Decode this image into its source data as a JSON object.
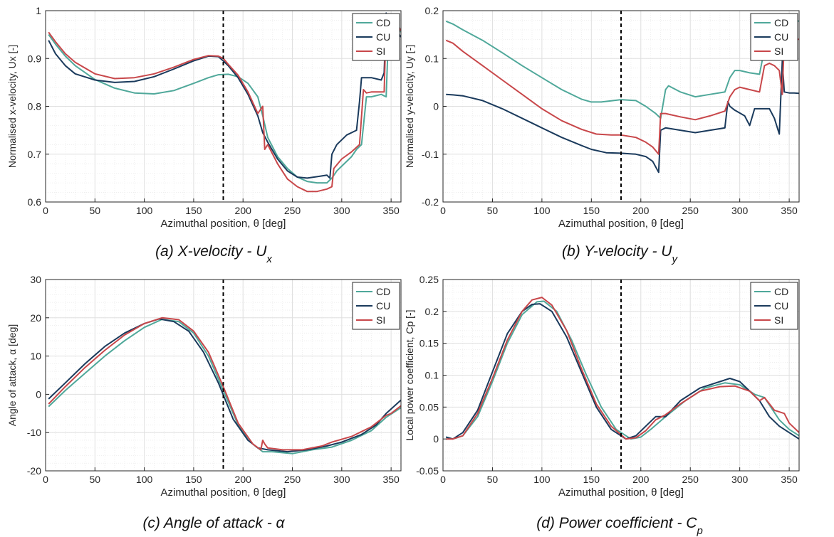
{
  "colors": {
    "CD": "#4fa89a",
    "CU": "#1a3a5c",
    "SI": "#c8474a",
    "grid": "#e0e0e0",
    "marker": "#000000"
  },
  "chart_data": [
    {
      "type": "line",
      "caption": "(a) X-velocity - U",
      "caption_sub": "x",
      "xlabel": "Azimuthal position, θ [deg]",
      "ylabel": "Normalised x-velocity, Ux [-]",
      "xlim": [
        0,
        360
      ],
      "ylim": [
        0.6,
        1.0
      ],
      "xticks": [
        0,
        50,
        100,
        150,
        200,
        250,
        300,
        350
      ],
      "yticks": [
        0.6,
        0.7,
        0.8,
        0.9,
        1.0
      ],
      "ytick_labels": [
        "0.6",
        "0.7",
        "0.8",
        "0.9",
        "1"
      ],
      "grid": true,
      "minor_grid": true,
      "legend_position": "top-right",
      "vline_x": 180,
      "series": [
        {
          "name": "CD",
          "x": [
            3,
            10,
            20,
            30,
            50,
            70,
            90,
            110,
            130,
            150,
            165,
            175,
            185,
            195,
            205,
            215,
            220,
            225,
            235,
            245,
            255,
            265,
            275,
            285,
            290,
            295,
            300,
            310,
            315,
            320,
            325,
            330,
            340,
            345,
            348,
            355,
            360
          ],
          "y": [
            0.95,
            0.93,
            0.905,
            0.885,
            0.856,
            0.838,
            0.828,
            0.826,
            0.833,
            0.848,
            0.86,
            0.866,
            0.867,
            0.862,
            0.848,
            0.82,
            0.78,
            0.735,
            0.695,
            0.67,
            0.652,
            0.643,
            0.64,
            0.64,
            0.65,
            0.665,
            0.675,
            0.695,
            0.71,
            0.72,
            0.82,
            0.82,
            0.825,
            0.82,
            0.99,
            0.985,
            0.955
          ]
        },
        {
          "name": "CU",
          "x": [
            3,
            10,
            20,
            30,
            50,
            70,
            90,
            110,
            130,
            150,
            165,
            175,
            180,
            185,
            195,
            205,
            215,
            220,
            225,
            235,
            245,
            255,
            265,
            275,
            285,
            288,
            290,
            295,
            305,
            315,
            318,
            320,
            325,
            330,
            340,
            343,
            345,
            348,
            355,
            360
          ],
          "y": [
            0.938,
            0.91,
            0.885,
            0.868,
            0.855,
            0.85,
            0.852,
            0.862,
            0.878,
            0.895,
            0.905,
            0.904,
            0.895,
            0.885,
            0.86,
            0.825,
            0.78,
            0.745,
            0.725,
            0.69,
            0.665,
            0.652,
            0.65,
            0.653,
            0.656,
            0.65,
            0.7,
            0.72,
            0.74,
            0.75,
            0.81,
            0.86,
            0.86,
            0.86,
            0.855,
            0.87,
            0.995,
            0.98,
            0.96,
            0.945
          ]
        },
        {
          "name": "SI",
          "x": [
            3,
            10,
            20,
            30,
            50,
            70,
            90,
            110,
            130,
            150,
            165,
            175,
            180,
            185,
            195,
            205,
            215,
            220,
            222,
            225,
            235,
            245,
            255,
            265,
            275,
            285,
            290,
            292,
            300,
            310,
            318,
            322,
            325,
            330,
            340,
            343,
            345,
            348,
            355,
            360
          ],
          "y": [
            0.955,
            0.935,
            0.91,
            0.892,
            0.868,
            0.858,
            0.86,
            0.868,
            0.882,
            0.898,
            0.906,
            0.905,
            0.9,
            0.888,
            0.865,
            0.83,
            0.785,
            0.8,
            0.71,
            0.72,
            0.68,
            0.648,
            0.632,
            0.622,
            0.622,
            0.627,
            0.632,
            0.67,
            0.69,
            0.705,
            0.72,
            0.835,
            0.828,
            0.83,
            0.83,
            0.83,
            0.975,
            0.98,
            0.975,
            0.958
          ]
        }
      ]
    },
    {
      "type": "line",
      "caption": "(b) Y-velocity - U",
      "caption_sub": "y",
      "xlabel": "Azimuthal position, θ [deg]",
      "ylabel": "Normalised y-velocity, Uy [-]",
      "xlim": [
        0,
        360
      ],
      "ylim": [
        -0.2,
        0.2
      ],
      "xticks": [
        0,
        50,
        100,
        150,
        200,
        250,
        300,
        350
      ],
      "yticks": [
        -0.2,
        -0.1,
        0,
        0.1,
        0.2
      ],
      "ytick_labels": [
        "-0.2",
        "-0.1",
        "0",
        "0.1",
        "0.2"
      ],
      "grid": true,
      "minor_grid": true,
      "legend_position": "top-right",
      "vline_x": 180,
      "series": [
        {
          "name": "CD",
          "x": [
            3,
            10,
            20,
            40,
            60,
            80,
            100,
            120,
            140,
            150,
            160,
            180,
            195,
            205,
            215,
            220,
            225,
            228,
            240,
            255,
            270,
            285,
            290,
            295,
            300,
            310,
            320,
            325,
            330,
            340,
            345,
            350,
            353,
            360
          ],
          "y": [
            0.178,
            0.172,
            0.16,
            0.138,
            0.112,
            0.085,
            0.06,
            0.035,
            0.015,
            0.009,
            0.009,
            0.014,
            0.012,
            0.0,
            -0.015,
            -0.025,
            0.035,
            0.043,
            0.03,
            0.02,
            0.025,
            0.03,
            0.06,
            0.075,
            0.075,
            0.07,
            0.067,
            0.12,
            0.125,
            0.12,
            0.12,
            0.1,
            0.18,
            0.178
          ]
        },
        {
          "name": "CU",
          "x": [
            3,
            10,
            20,
            40,
            60,
            80,
            100,
            120,
            140,
            150,
            165,
            180,
            195,
            205,
            212,
            218,
            220,
            225,
            240,
            255,
            270,
            285,
            288,
            290,
            295,
            305,
            310,
            315,
            320,
            325,
            330,
            335,
            340,
            343,
            345,
            350,
            355,
            360
          ],
          "y": [
            0.025,
            0.024,
            0.022,
            0.012,
            -0.005,
            -0.025,
            -0.045,
            -0.065,
            -0.082,
            -0.09,
            -0.097,
            -0.098,
            -0.1,
            -0.105,
            -0.115,
            -0.138,
            -0.05,
            -0.045,
            -0.05,
            -0.055,
            -0.05,
            -0.045,
            0.01,
            0.0,
            -0.008,
            -0.02,
            -0.04,
            -0.005,
            -0.005,
            -0.005,
            -0.005,
            -0.025,
            -0.058,
            0.095,
            0.03,
            0.028,
            0.028,
            0.027
          ]
        },
        {
          "name": "SI",
          "x": [
            3,
            10,
            20,
            40,
            60,
            80,
            100,
            120,
            140,
            155,
            170,
            180,
            195,
            205,
            212,
            218,
            220,
            225,
            240,
            255,
            270,
            285,
            290,
            295,
            300,
            310,
            320,
            325,
            330,
            335,
            340,
            343,
            345,
            350,
            355,
            360
          ],
          "y": [
            0.138,
            0.132,
            0.115,
            0.085,
            0.055,
            0.025,
            -0.005,
            -0.03,
            -0.048,
            -0.058,
            -0.06,
            -0.06,
            -0.065,
            -0.075,
            -0.085,
            -0.1,
            -0.015,
            -0.015,
            -0.022,
            -0.028,
            -0.02,
            -0.01,
            0.02,
            0.035,
            0.04,
            0.035,
            0.03,
            0.085,
            0.09,
            0.085,
            0.075,
            0.025,
            0.14,
            0.14,
            0.14,
            0.14
          ]
        }
      ]
    },
    {
      "type": "line",
      "caption": "(c) Angle of attack - α",
      "caption_sub": "",
      "xlabel": "Azimuthal position, θ [deg]",
      "ylabel": "Angle of attack, α [deg]",
      "xlim": [
        0,
        360
      ],
      "ylim": [
        -20,
        30
      ],
      "xticks": [
        0,
        50,
        100,
        150,
        200,
        250,
        300,
        350
      ],
      "yticks": [
        -20,
        -10,
        0,
        10,
        20,
        30
      ],
      "ytick_labels": [
        "-20",
        "-10",
        "0",
        "10",
        "20",
        "30"
      ],
      "grid": true,
      "minor_grid": true,
      "legend_position": "top-right",
      "vline_x": 180,
      "series": [
        {
          "name": "CD",
          "x": [
            3,
            20,
            40,
            60,
            80,
            100,
            118,
            135,
            150,
            165,
            180,
            195,
            210,
            220,
            230,
            250,
            270,
            290,
            310,
            330,
            345,
            360
          ],
          "y": [
            -3.2,
            1,
            5.5,
            10,
            14,
            17.5,
            19.6,
            19,
            16,
            10,
            1,
            -8,
            -13,
            -15,
            -15,
            -15.5,
            -14.5,
            -13.8,
            -12,
            -9.5,
            -6,
            -3.5
          ]
        },
        {
          "name": "CU",
          "x": [
            3,
            20,
            40,
            60,
            80,
            100,
            115,
            130,
            145,
            160,
            175,
            190,
            205,
            215,
            225,
            245,
            265,
            285,
            300,
            320,
            335,
            345,
            360
          ],
          "y": [
            -1.2,
            3,
            8,
            12.5,
            16,
            18.5,
            19.7,
            19,
            16.5,
            11,
            3,
            -6.5,
            -12,
            -14,
            -14.5,
            -15,
            -14.5,
            -13.5,
            -12.5,
            -10.5,
            -8,
            -5,
            -1.5
          ]
        },
        {
          "name": "SI",
          "x": [
            3,
            20,
            40,
            60,
            80,
            100,
            118,
            135,
            150,
            165,
            180,
            195,
            210,
            218,
            220,
            222,
            225,
            240,
            260,
            280,
            290,
            310,
            330,
            345,
            350,
            360
          ],
          "y": [
            -2.5,
            2,
            7,
            11.5,
            15.5,
            18.5,
            20,
            19.5,
            16.5,
            11,
            2,
            -7.5,
            -13,
            -14.5,
            -12,
            -13,
            -14,
            -14.5,
            -14.5,
            -13.5,
            -12.5,
            -11,
            -8.5,
            -5.5,
            -5,
            -3
          ]
        }
      ]
    },
    {
      "type": "line",
      "caption": "(d) Power coefficient - C",
      "caption_sub": "p",
      "xlabel": "Azimuthal position, θ [deg]",
      "ylabel": "Local power coefficient, Cp [-]",
      "xlim": [
        0,
        360
      ],
      "ylim": [
        -0.05,
        0.25
      ],
      "xticks": [
        0,
        50,
        100,
        150,
        200,
        250,
        300,
        350
      ],
      "yticks": [
        -0.05,
        0,
        0.05,
        0.1,
        0.15,
        0.2,
        0.25
      ],
      "ytick_labels": [
        "-0.05",
        "0",
        "0.05",
        "0.1",
        "0.15",
        "0.2",
        "0.25"
      ],
      "grid": true,
      "minor_grid": true,
      "legend_position": "top-right",
      "vline_x": 180,
      "series": [
        {
          "name": "CD",
          "x": [
            3,
            10,
            20,
            35,
            50,
            65,
            80,
            95,
            102,
            115,
            130,
            145,
            160,
            175,
            190,
            200,
            210,
            225,
            245,
            265,
            285,
            300,
            315,
            325,
            340,
            350,
            360
          ],
          "y": [
            0.003,
            0,
            0.005,
            0.035,
            0.09,
            0.15,
            0.195,
            0.215,
            0.216,
            0.2,
            0.155,
            0.1,
            0.05,
            0.015,
            0,
            0.003,
            0.015,
            0.035,
            0.06,
            0.08,
            0.088,
            0.085,
            0.07,
            0.065,
            0.03,
            0.015,
            0.005
          ]
        },
        {
          "name": "CU",
          "x": [
            3,
            10,
            20,
            35,
            50,
            65,
            80,
            90,
            98,
            110,
            125,
            140,
            155,
            170,
            185,
            195,
            205,
            215,
            225,
            240,
            260,
            280,
            290,
            300,
            310,
            320,
            330,
            340,
            350,
            360
          ],
          "y": [
            0.003,
            0,
            0.01,
            0.045,
            0.105,
            0.165,
            0.2,
            0.211,
            0.212,
            0.2,
            0.16,
            0.105,
            0.05,
            0.015,
            0,
            0.005,
            0.02,
            0.035,
            0.035,
            0.06,
            0.08,
            0.09,
            0.095,
            0.09,
            0.075,
            0.06,
            0.035,
            0.02,
            0.01,
            0
          ]
        },
        {
          "name": "SI",
          "x": [
            3,
            10,
            20,
            35,
            50,
            65,
            80,
            90,
            100,
            110,
            125,
            140,
            155,
            170,
            185,
            195,
            205,
            215,
            225,
            240,
            260,
            280,
            295,
            310,
            320,
            325,
            335,
            345,
            350,
            360
          ],
          "y": [
            0,
            0,
            0.005,
            0.04,
            0.095,
            0.155,
            0.2,
            0.218,
            0.222,
            0.21,
            0.17,
            0.11,
            0.055,
            0.02,
            0,
            0.002,
            0.013,
            0.03,
            0.038,
            0.055,
            0.075,
            0.082,
            0.083,
            0.075,
            0.06,
            0.065,
            0.045,
            0.04,
            0.025,
            0.01
          ]
        }
      ]
    }
  ]
}
